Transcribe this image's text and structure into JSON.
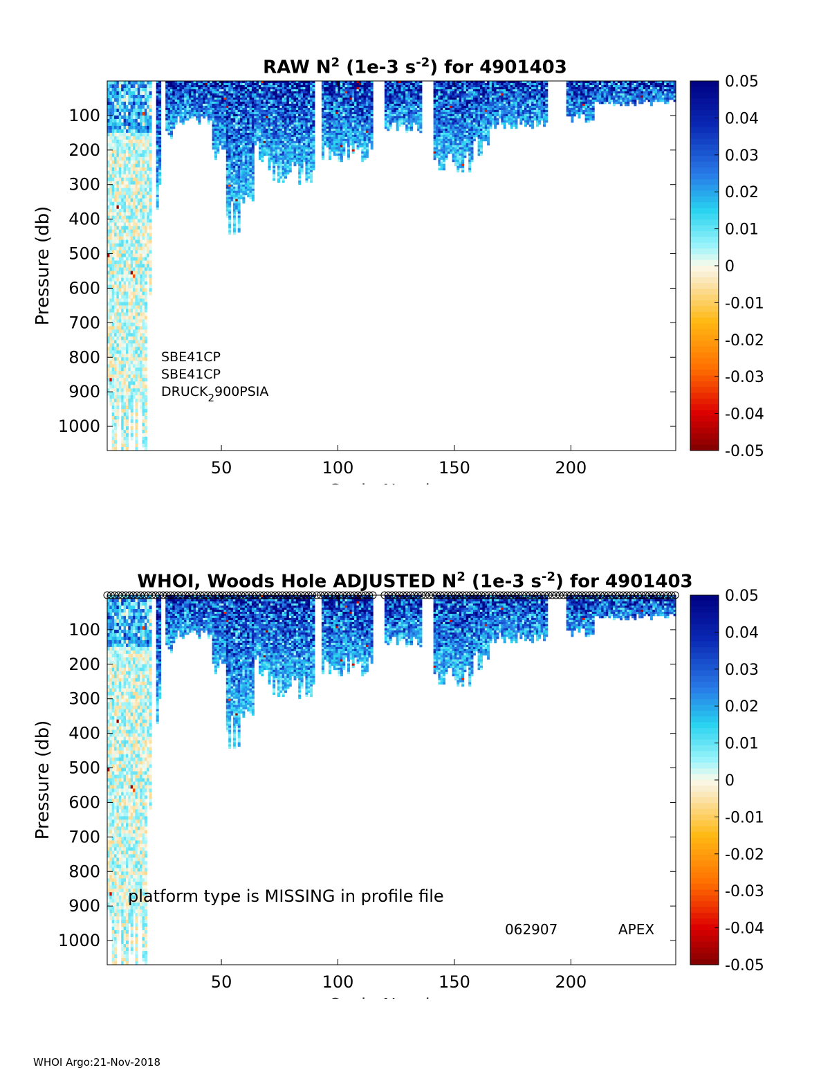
{
  "chart_data": [
    {
      "type": "heatmap",
      "title_prefix": "",
      "title_main": "RAW N",
      "title_sup": "2",
      "title_mid": " (1e-3 s",
      "title_sup2": "-2",
      "title_end": ") for 4901403",
      "xlabel": "Cycle Number",
      "ylabel": "Pressure (db)",
      "xlim": [
        1,
        245
      ],
      "ylim": [
        1070,
        0
      ],
      "xticks": [
        "50",
        "100",
        "150",
        "200"
      ],
      "yticks": [
        "100",
        "200",
        "300",
        "400",
        "500",
        "600",
        "700",
        "800",
        "900",
        "1000"
      ],
      "colorbar": {
        "min": -0.05,
        "max": 0.05,
        "ticks": [
          "0.05",
          "0.04",
          "0.03",
          "0.02",
          "0.01",
          "0",
          "-0.01",
          "-0.02",
          "-0.03",
          "-0.04",
          "-0.05"
        ]
      },
      "annotations": [
        "SBE41CP",
        "SBE41CP",
        "DRUCK",
        "2",
        "900PSIA"
      ],
      "profile_max_depth_segments": [
        [
          1,
          18,
          1060
        ],
        [
          18,
          20,
          560
        ],
        [
          22,
          24,
          330
        ],
        [
          26,
          30,
          150
        ],
        [
          30,
          46,
          110
        ],
        [
          46,
          52,
          200
        ],
        [
          52,
          58,
          390
        ],
        [
          58,
          64,
          310
        ],
        [
          64,
          70,
          200
        ],
        [
          70,
          90,
          260
        ],
        [
          93,
          100,
          200
        ],
        [
          100,
          115,
          205
        ],
        [
          120,
          136,
          130
        ],
        [
          141,
          158,
          230
        ],
        [
          158,
          165,
          190
        ],
        [
          165,
          190,
          120
        ],
        [
          198,
          210,
          105
        ],
        [
          210,
          230,
          60
        ],
        [
          230,
          245,
          60
        ]
      ]
    },
    {
      "type": "heatmap",
      "title_prefix": "WHOI, Woods Hole  ",
      "title_main": "ADJUSTED N",
      "title_sup": "2",
      "title_mid": " (1e-3 s",
      "title_sup2": "-2",
      "title_end": ") for 4901403",
      "xlabel": "Cycle Number",
      "ylabel": "Pressure (db)",
      "xlim": [
        1,
        245
      ],
      "ylim": [
        1070,
        0
      ],
      "xticks": [
        "50",
        "100",
        "150",
        "200"
      ],
      "yticks": [
        "100",
        "200",
        "300",
        "400",
        "500",
        "600",
        "700",
        "800",
        "900",
        "1000"
      ],
      "colorbar": {
        "min": -0.05,
        "max": 0.05,
        "ticks": [
          "0.05",
          "0.04",
          "0.03",
          "0.02",
          "0.01",
          "0",
          "-0.01",
          "-0.02",
          "-0.03",
          "-0.04",
          "-0.05"
        ]
      },
      "annotations": [
        "platform type is MISSING in profile file",
        "062907",
        "APEX"
      ],
      "qc_markers": "o",
      "profile_max_depth_segments": [
        [
          1,
          18,
          1060
        ],
        [
          18,
          20,
          560
        ],
        [
          22,
          24,
          330
        ],
        [
          26,
          30,
          150
        ],
        [
          30,
          46,
          110
        ],
        [
          46,
          52,
          200
        ],
        [
          52,
          58,
          390
        ],
        [
          58,
          64,
          310
        ],
        [
          64,
          70,
          200
        ],
        [
          70,
          90,
          260
        ],
        [
          93,
          100,
          200
        ],
        [
          100,
          115,
          205
        ],
        [
          120,
          136,
          130
        ],
        [
          141,
          158,
          230
        ],
        [
          158,
          165,
          190
        ],
        [
          165,
          190,
          120
        ],
        [
          198,
          210,
          105
        ],
        [
          210,
          230,
          60
        ],
        [
          230,
          245,
          60
        ]
      ]
    }
  ],
  "footer": "WHOI Argo:21-Nov-2018"
}
